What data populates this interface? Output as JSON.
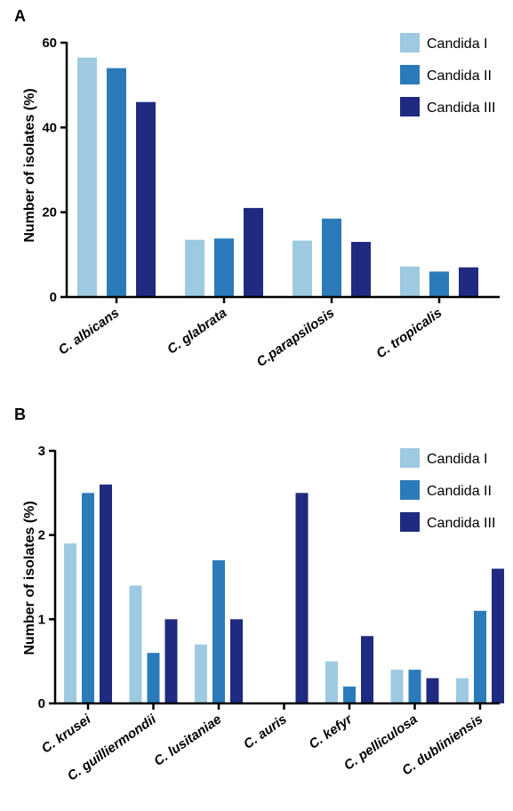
{
  "colors": {
    "Candida I": "#9ecae1",
    "Candida II": "#2b7bba",
    "Candida III": "#1f2a80"
  },
  "chart_data": [
    {
      "panel": "A",
      "type": "bar",
      "title": "",
      "xlabel": "",
      "ylabel": "Number of isolates (%)",
      "ylim": [
        0,
        60
      ],
      "yticks": [
        0,
        20,
        40,
        60
      ],
      "legend": "top-right",
      "categories": [
        "C. albicans",
        "C. glabrata",
        "C.parapsilosis",
        "C. tropicalis"
      ],
      "series": [
        {
          "name": "Candida I",
          "values": [
            56.5,
            13.5,
            13.3,
            7.2
          ]
        },
        {
          "name": "Candida II",
          "values": [
            54.0,
            13.8,
            18.5,
            6.0
          ]
        },
        {
          "name": "Candida III",
          "values": [
            46.0,
            21.0,
            13.0,
            7.0
          ]
        }
      ]
    },
    {
      "panel": "B",
      "type": "bar",
      "title": "",
      "xlabel": "",
      "ylabel": "Number of isolates (%)",
      "ylim": [
        0,
        3
      ],
      "yticks": [
        0,
        1,
        2,
        3
      ],
      "legend": "top-right",
      "categories": [
        "C. krusei",
        "C. guilliermondii",
        "C. lusitaniae",
        "C. auris",
        "C. kefyr",
        "C. pelliculosa",
        "C. dubliniensis"
      ],
      "series": [
        {
          "name": "Candida I",
          "values": [
            1.9,
            1.4,
            0.7,
            0,
            0.5,
            0.4,
            0.3
          ]
        },
        {
          "name": "Candida II",
          "values": [
            2.5,
            0.6,
            1.7,
            0,
            0.2,
            0.4,
            1.1
          ]
        },
        {
          "name": "Candida III",
          "values": [
            2.6,
            1.0,
            1.0,
            2.5,
            0.8,
            0.3,
            1.6
          ]
        }
      ]
    }
  ]
}
